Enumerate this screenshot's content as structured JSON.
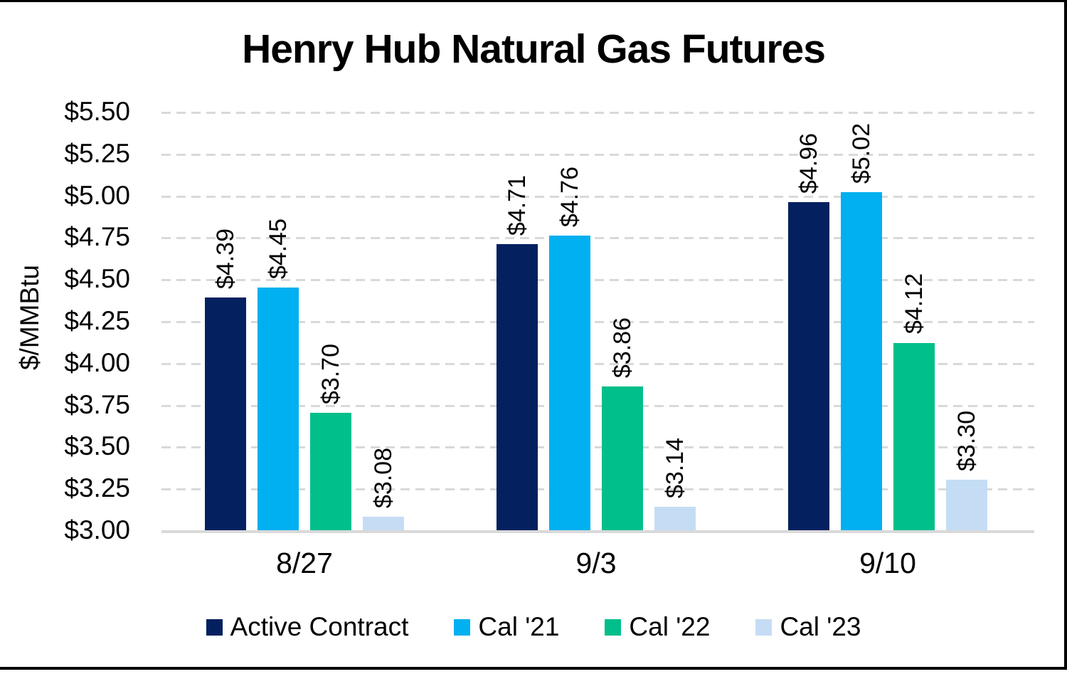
{
  "chart_data": {
    "type": "bar",
    "title": "Henry Hub Natural Gas Futures",
    "ylabel": "$/MMBtu",
    "xlabel": "",
    "categories": [
      "8/27",
      "9/3",
      "9/10"
    ],
    "series": [
      {
        "name": "Active Contract",
        "color": "#04205F",
        "values": [
          4.39,
          4.71,
          4.96
        ],
        "labels": [
          "$4.39",
          "$4.71",
          "$4.96"
        ]
      },
      {
        "name": "Cal '21",
        "color": "#00B0F0",
        "values": [
          4.45,
          4.76,
          5.02
        ],
        "labels": [
          "$4.45",
          "$4.76",
          "$5.02"
        ]
      },
      {
        "name": "Cal '22",
        "color": "#00BF8B",
        "values": [
          3.7,
          3.86,
          4.12
        ],
        "labels": [
          "$3.70",
          "$3.86",
          "$4.12"
        ]
      },
      {
        "name": "Cal '23",
        "color": "#C5DDF4",
        "values": [
          3.08,
          3.14,
          3.3
        ],
        "labels": [
          "$3.08",
          "$3.14",
          "$3.30"
        ]
      }
    ],
    "ylim": [
      3.0,
      5.5
    ],
    "yticks": [
      {
        "value": 5.5,
        "label": "$5.50"
      },
      {
        "value": 5.25,
        "label": "$5.25"
      },
      {
        "value": 5.0,
        "label": "$5.00"
      },
      {
        "value": 4.75,
        "label": "$4.75"
      },
      {
        "value": 4.5,
        "label": "$4.50"
      },
      {
        "value": 4.25,
        "label": "$4.25"
      },
      {
        "value": 4.0,
        "label": "$4.00"
      },
      {
        "value": 3.75,
        "label": "$3.75"
      },
      {
        "value": 3.5,
        "label": "$3.50"
      },
      {
        "value": 3.25,
        "label": "$3.25"
      },
      {
        "value": 3.0,
        "label": "$3.00"
      }
    ],
    "grid": "horizontal-dashed",
    "gridline_color": "#D9D9D9",
    "axis_line_color": "#D9D9D9",
    "legend_position": "bottom",
    "data_label_rotation": 90
  }
}
